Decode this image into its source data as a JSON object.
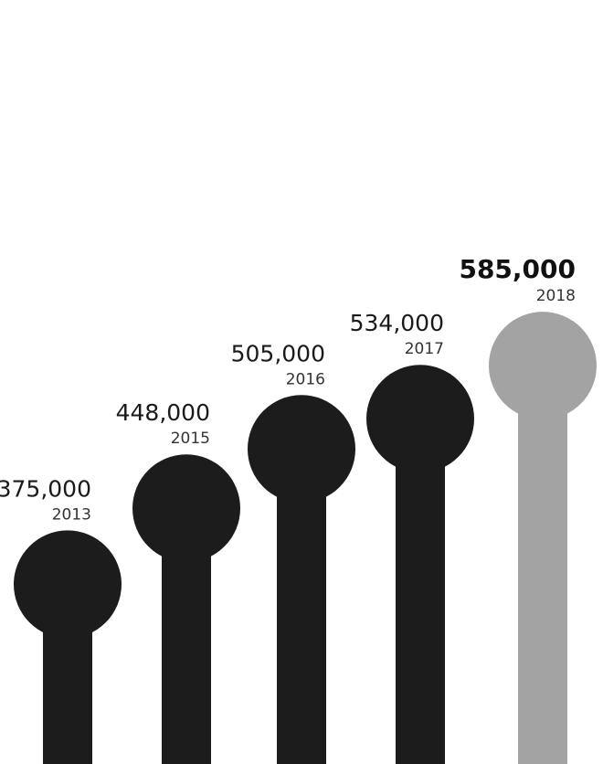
{
  "chart_data": {
    "type": "bar",
    "categories": [
      "2013",
      "2015",
      "2016",
      "2017",
      "2018"
    ],
    "values": [
      375000,
      448000,
      505000,
      534000,
      585000
    ],
    "value_labels": [
      "375,000",
      "448,000",
      "505,000",
      "534,000",
      "585,000"
    ],
    "highlight_index": 4,
    "colors": {
      "bar": "#1c1c1c",
      "highlight": "#a3a3a3"
    },
    "title": "",
    "xlabel": "",
    "ylabel": "",
    "grid": false,
    "legend": "none"
  }
}
